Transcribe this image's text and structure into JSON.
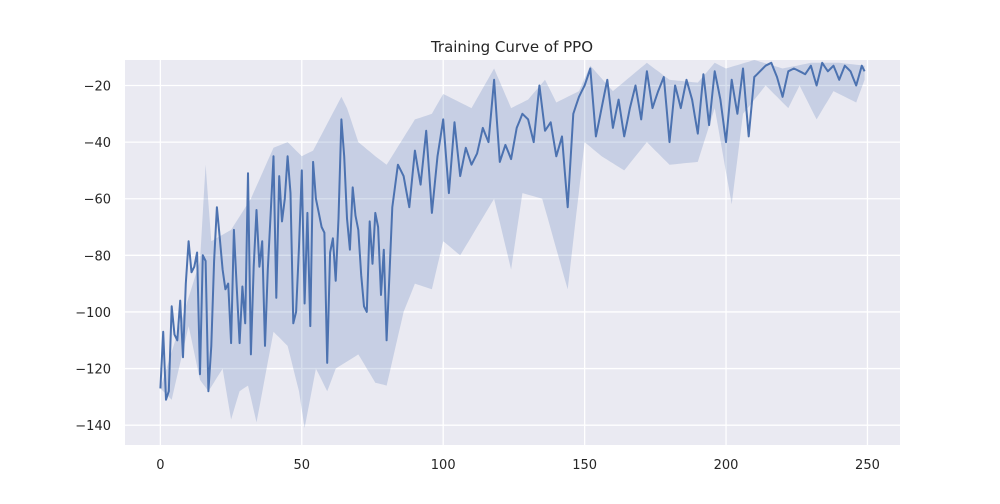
{
  "chart_data": {
    "type": "line",
    "title": "Training Curve of PPO",
    "xlabel": "",
    "ylabel": "",
    "xlim": [
      -12.5,
      261.5
    ],
    "ylim": [
      -147,
      -11
    ],
    "xticks": [
      0,
      50,
      100,
      150,
      200,
      250
    ],
    "yticks": [
      -140,
      -120,
      -100,
      -80,
      -60,
      -40,
      -20
    ],
    "grid": true,
    "legend": "none",
    "colors": {
      "background": "#eaeaf2",
      "grid": "#ffffff",
      "line": "#4c72b0",
      "band": "#4c72b0"
    },
    "anchors": [
      [
        0,
        -127
      ],
      [
        1,
        -107
      ],
      [
        2,
        -131
      ],
      [
        3,
        -128
      ],
      [
        4,
        -98
      ],
      [
        5,
        -108
      ],
      [
        6,
        -110
      ],
      [
        7,
        -96
      ],
      [
        8,
        -116
      ],
      [
        9,
        -90
      ],
      [
        10,
        -75
      ],
      [
        11,
        -86
      ],
      [
        12,
        -84
      ],
      [
        13,
        -79
      ],
      [
        14,
        -122
      ],
      [
        15,
        -80
      ],
      [
        16,
        -82
      ],
      [
        17,
        -128
      ],
      [
        18,
        -112
      ],
      [
        19,
        -82
      ],
      [
        20,
        -63
      ],
      [
        21,
        -74
      ],
      [
        22,
        -85
      ],
      [
        23,
        -92
      ],
      [
        24,
        -90
      ],
      [
        25,
        -111
      ],
      [
        26,
        -71
      ],
      [
        27,
        -91
      ],
      [
        28,
        -111
      ],
      [
        29,
        -91
      ],
      [
        30,
        -104
      ],
      [
        31,
        -51
      ],
      [
        32,
        -115
      ],
      [
        33,
        -84
      ],
      [
        34,
        -64
      ],
      [
        35,
        -84
      ],
      [
        36,
        -75
      ],
      [
        37,
        -112
      ],
      [
        38,
        -85
      ],
      [
        39,
        -65
      ],
      [
        40,
        -45
      ],
      [
        41,
        -95
      ],
      [
        42,
        -52
      ],
      [
        43,
        -68
      ],
      [
        44,
        -60
      ],
      [
        45,
        -45
      ],
      [
        46,
        -58
      ],
      [
        47,
        -104
      ],
      [
        48,
        -100
      ],
      [
        49,
        -77
      ],
      [
        50,
        -50
      ],
      [
        51,
        -97
      ],
      [
        52,
        -65
      ],
      [
        53,
        -105
      ],
      [
        54,
        -47
      ],
      [
        55,
        -60
      ],
      [
        56,
        -65
      ],
      [
        57,
        -70
      ],
      [
        58,
        -72
      ],
      [
        59,
        -118
      ],
      [
        60,
        -79
      ],
      [
        61,
        -74
      ],
      [
        62,
        -89
      ],
      [
        63,
        -67
      ],
      [
        64,
        -32
      ],
      [
        65,
        -45
      ],
      [
        66,
        -67
      ],
      [
        67,
        -78
      ],
      [
        68,
        -56
      ],
      [
        69,
        -66
      ],
      [
        70,
        -71
      ],
      [
        71,
        -87
      ],
      [
        72,
        -98
      ],
      [
        73,
        -100
      ],
      [
        74,
        -68
      ],
      [
        75,
        -83
      ],
      [
        76,
        -65
      ],
      [
        77,
        -70
      ],
      [
        78,
        -94
      ],
      [
        79,
        -78
      ],
      [
        80,
        -110
      ],
      [
        82,
        -63
      ],
      [
        84,
        -48
      ],
      [
        86,
        -52
      ],
      [
        88,
        -63
      ],
      [
        90,
        -43
      ],
      [
        92,
        -55
      ],
      [
        94,
        -36
      ],
      [
        96,
        -65
      ],
      [
        98,
        -45
      ],
      [
        100,
        -32
      ],
      [
        102,
        -58
      ],
      [
        104,
        -33
      ],
      [
        106,
        -52
      ],
      [
        108,
        -42
      ],
      [
        110,
        -48
      ],
      [
        112,
        -44
      ],
      [
        114,
        -35
      ],
      [
        116,
        -40
      ],
      [
        118,
        -18
      ],
      [
        120,
        -47
      ],
      [
        122,
        -41
      ],
      [
        124,
        -46
      ],
      [
        126,
        -35
      ],
      [
        128,
        -30
      ],
      [
        130,
        -32
      ],
      [
        132,
        -40
      ],
      [
        134,
        -20
      ],
      [
        136,
        -36
      ],
      [
        138,
        -33
      ],
      [
        140,
        -45
      ],
      [
        142,
        -38
      ],
      [
        144,
        -63
      ],
      [
        146,
        -30
      ],
      [
        148,
        -24
      ],
      [
        150,
        -20
      ],
      [
        152,
        -14
      ],
      [
        154,
        -38
      ],
      [
        156,
        -28
      ],
      [
        158,
        -18
      ],
      [
        160,
        -35
      ],
      [
        162,
        -25
      ],
      [
        164,
        -38
      ],
      [
        166,
        -28
      ],
      [
        168,
        -20
      ],
      [
        170,
        -32
      ],
      [
        172,
        -15
      ],
      [
        174,
        -28
      ],
      [
        176,
        -22
      ],
      [
        178,
        -17
      ],
      [
        180,
        -40
      ],
      [
        182,
        -20
      ],
      [
        184,
        -28
      ],
      [
        186,
        -18
      ],
      [
        188,
        -25
      ],
      [
        190,
        -37
      ],
      [
        192,
        -16
      ],
      [
        194,
        -34
      ],
      [
        196,
        -15
      ],
      [
        198,
        -25
      ],
      [
        200,
        -40
      ],
      [
        202,
        -18
      ],
      [
        204,
        -30
      ],
      [
        206,
        -14
      ],
      [
        208,
        -38
      ],
      [
        210,
        -17
      ],
      [
        212,
        -15
      ],
      [
        214,
        -13
      ],
      [
        216,
        -12
      ],
      [
        218,
        -17
      ],
      [
        220,
        -24
      ],
      [
        222,
        -15
      ],
      [
        224,
        -14
      ],
      [
        226,
        -15
      ],
      [
        228,
        -16
      ],
      [
        230,
        -13
      ],
      [
        232,
        -20
      ],
      [
        234,
        -12
      ],
      [
        236,
        -15
      ],
      [
        238,
        -13
      ],
      [
        240,
        -18
      ],
      [
        242,
        -13
      ],
      [
        244,
        -15
      ],
      [
        246,
        -20
      ],
      [
        248,
        -13
      ],
      [
        249,
        -15
      ]
    ],
    "upper": [
      [
        0,
        -127
      ],
      [
        14,
        -82
      ],
      [
        16,
        -48
      ],
      [
        18,
        -75
      ],
      [
        25,
        -71
      ],
      [
        32,
        -60
      ],
      [
        40,
        -42
      ],
      [
        45,
        -40
      ],
      [
        50,
        -45
      ],
      [
        54,
        -43
      ],
      [
        64,
        -24
      ],
      [
        66,
        -28
      ],
      [
        70,
        -40
      ],
      [
        76,
        -45
      ],
      [
        80,
        -48
      ],
      [
        90,
        -32
      ],
      [
        96,
        -30
      ],
      [
        100,
        -23
      ],
      [
        110,
        -28
      ],
      [
        118,
        -14
      ],
      [
        124,
        -28
      ],
      [
        130,
        -25
      ],
      [
        136,
        -18
      ],
      [
        140,
        -26
      ],
      [
        148,
        -22
      ],
      [
        152,
        -13
      ],
      [
        160,
        -22
      ],
      [
        172,
        -12
      ],
      [
        180,
        -18
      ],
      [
        190,
        -19
      ],
      [
        196,
        -12
      ],
      [
        200,
        -14
      ],
      [
        210,
        -11
      ],
      [
        220,
        -14
      ],
      [
        230,
        -12
      ],
      [
        240,
        -12
      ],
      [
        249,
        -13
      ]
    ],
    "lower": [
      [
        0,
        -127
      ],
      [
        4,
        -131
      ],
      [
        10,
        -105
      ],
      [
        14,
        -124
      ],
      [
        17,
        -128
      ],
      [
        22,
        -120
      ],
      [
        25,
        -138
      ],
      [
        28,
        -128
      ],
      [
        31,
        -126
      ],
      [
        34,
        -139
      ],
      [
        40,
        -107
      ],
      [
        45,
        -112
      ],
      [
        49,
        -128
      ],
      [
        51,
        -141
      ],
      [
        55,
        -120
      ],
      [
        59,
        -128
      ],
      [
        62,
        -120
      ],
      [
        70,
        -115
      ],
      [
        76,
        -125
      ],
      [
        80,
        -126
      ],
      [
        86,
        -100
      ],
      [
        90,
        -90
      ],
      [
        96,
        -92
      ],
      [
        100,
        -75
      ],
      [
        106,
        -80
      ],
      [
        112,
        -70
      ],
      [
        118,
        -60
      ],
      [
        124,
        -85
      ],
      [
        128,
        -58
      ],
      [
        135,
        -60
      ],
      [
        144,
        -92
      ],
      [
        150,
        -40
      ],
      [
        156,
        -45
      ],
      [
        164,
        -50
      ],
      [
        172,
        -40
      ],
      [
        180,
        -48
      ],
      [
        190,
        -47
      ],
      [
        196,
        -28
      ],
      [
        202,
        -62
      ],
      [
        206,
        -30
      ],
      [
        214,
        -20
      ],
      [
        222,
        -28
      ],
      [
        226,
        -20
      ],
      [
        232,
        -32
      ],
      [
        238,
        -22
      ],
      [
        246,
        -26
      ],
      [
        249,
        -18
      ]
    ]
  }
}
